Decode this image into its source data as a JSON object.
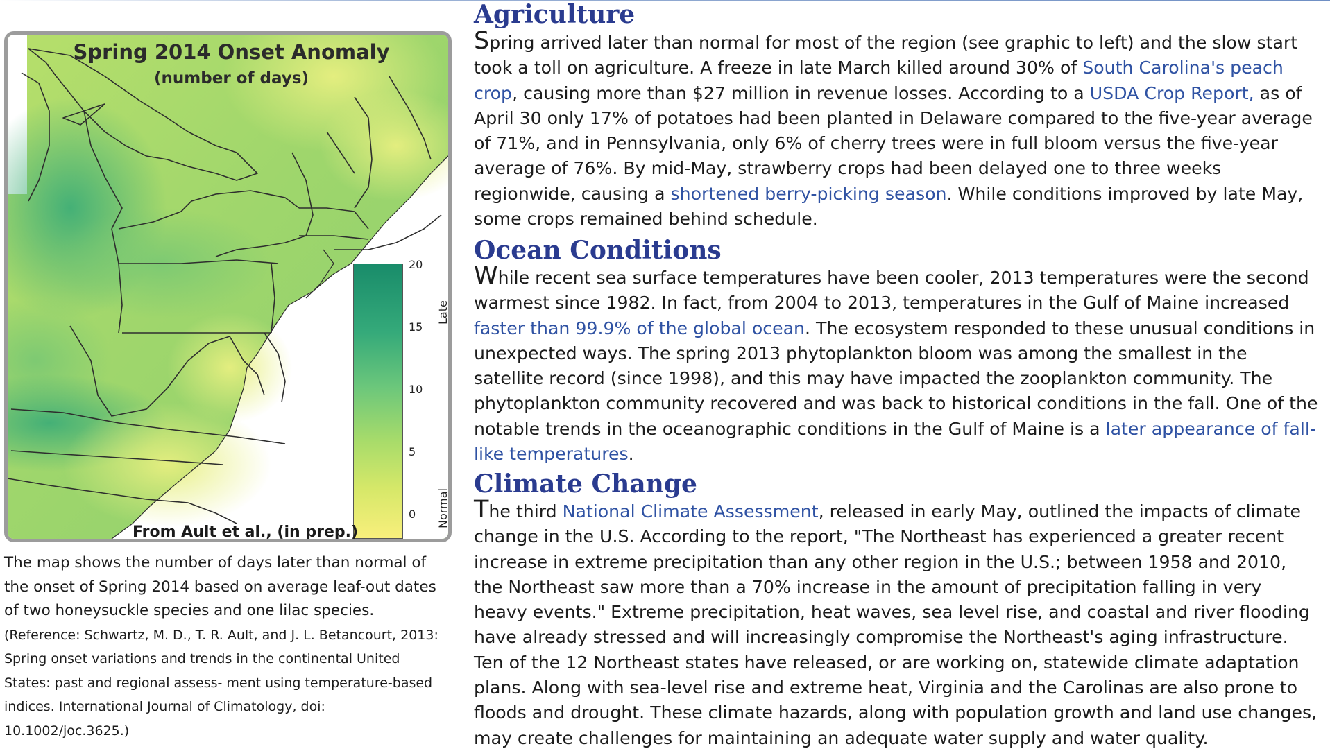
{
  "map": {
    "title": "Spring 2014 Onset Anomaly",
    "subtitle": "(number of days)",
    "source": "From Ault et al., (in prep.)",
    "legend": {
      "ticks": [
        "20",
        "15",
        "10",
        "5",
        "0"
      ],
      "late_label": "Late",
      "normal_label": "Normal",
      "colors": [
        "#f8ef7c",
        "#a9dc6a",
        "#6cc77b",
        "#35aa7a",
        "#198c6a"
      ]
    }
  },
  "caption": {
    "main": "The map shows the number of days later than normal of the onset of Spring 2014 based on average leaf-out dates of two honeysuckle species and one lilac species.",
    "reference": "(Reference: Schwartz, M. D., T. R. Ault, and J. L. Betancourt, 2013: Spring onset variations and trends in the continental United States: past and regional assess- ment using temperature-based indices. International Journal of Climatology, doi: 10.1002/joc.3625.)"
  },
  "agriculture": {
    "heading": "Agriculture",
    "dropcap": "S",
    "t1": "pring arrived later than normal for most of the region (see graphic to left) and the slow start took a toll on agriculture. A freeze in late March killed around 30% of ",
    "link1": "South Carolina's peach crop",
    "t2": ", causing more than $27 million in revenue losses. According to a ",
    "link2": "USDA Crop Report,",
    "t3": " as of April 30 only 17% of potatoes had been planted in Delaware compared to the five-year average of 71%, and in Pennsylvania, only 6% of cherry trees were in full bloom versus the five-year average of 76%. By mid-May, strawberry crops had been delayed one to three weeks regionwide, causing a ",
    "link3": "shortened berry-picking season",
    "t4": ". While conditions improved by late May, some crops remained behind schedule."
  },
  "ocean": {
    "heading": "Ocean Conditions",
    "dropcap": "W",
    "t1": "hile recent sea surface temperatures have been cooler, 2013 temperatures were the second warmest since 1982. In fact, from 2004 to 2013, temperatures in the Gulf of Maine increased ",
    "link1": "faster than 99.9% of the global ocean",
    "t2": ". The ecosystem responded to these unusual conditions in unexpected ways. The spring 2013 phytoplankton bloom was among the smallest in the satellite record (since 1998), and this may have impacted the zooplankton community. The phytoplankton community recovered and was back to historical conditions in the fall. One of the notable trends in the oceanographic conditions in the Gulf of Maine is a ",
    "link2": "later appearance of fall-like temperatures",
    "t3": "."
  },
  "climate": {
    "heading": "Climate Change",
    "dropcap": "T",
    "t1": "he third ",
    "link1": "National Climate Assessment",
    "t2": ", released in early May, outlined the impacts of climate change in the U.S. According to the report, \"The Northeast has experienced a greater recent increase in extreme precipitation than any other region in the U.S.; between 1958 and 2010, the Northeast saw more than a 70% increase in the amount of precipitation falling in very heavy events.\" Extreme precipitation, heat waves, sea level rise, and coastal and river flooding have already stressed and will increasingly compromise the Northeast's aging infrastructure. Ten of the 12 Northeast states have released, or are working on, statewide climate adaptation plans. Along with sea-level rise and extreme heat, Virginia and the Carolinas are also prone to floods and drought. These climate hazards, along with population growth and land use changes, may create challenges for maintaining an adequate water supply and water quality."
  }
}
